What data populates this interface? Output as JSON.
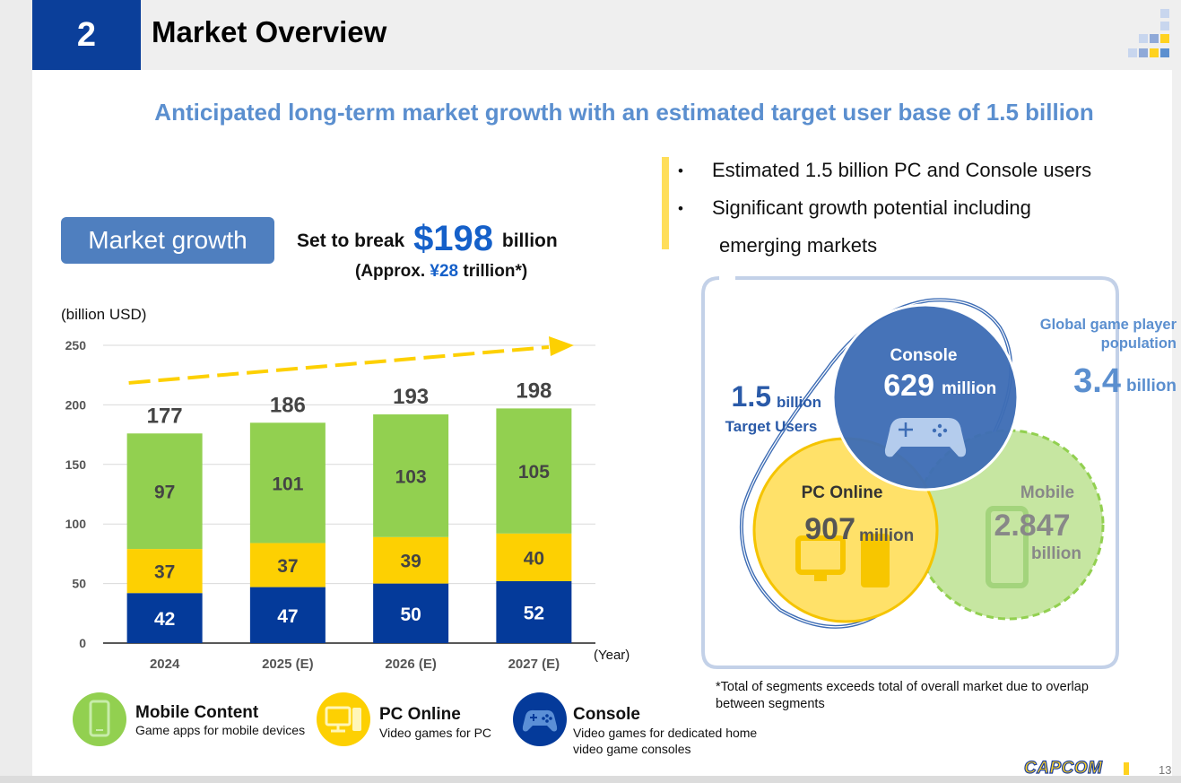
{
  "header": {
    "section_number": "2",
    "title": "Market Overview"
  },
  "subtitle": "Anticipated long-term market growth with an estimated target user base of 1.5 billion",
  "market_growth": {
    "badge": "Market growth",
    "break_prefix": "Set to break",
    "break_value": "$198",
    "break_suffix": "billion",
    "approx_prefix": "(Approx.",
    "approx_value": "¥28",
    "approx_suffix": "trillion",
    "approx_mark": "*)"
  },
  "bullets": [
    "Estimated 1.5 billion PC and Console users",
    "Significant growth potential including",
    "emerging markets"
  ],
  "bullet_symbol": "•",
  "chart_data": {
    "type": "bar",
    "stacked": true,
    "unit_label": "(billion  USD)",
    "x_axis_label": "(Year)",
    "categories": [
      "2024",
      "2025 (E)",
      "2026 (E)",
      "2027 (E)"
    ],
    "series": [
      {
        "name": "Console",
        "color": "#043a9a",
        "label_color": "#ffffff",
        "values": [
          42,
          47,
          50,
          52
        ]
      },
      {
        "name": "PC Online",
        "color": "#fdd002",
        "label_color": "#444444",
        "values": [
          37,
          37,
          39,
          40
        ]
      },
      {
        "name": "Mobile Content",
        "color": "#92d050",
        "label_color": "#444444",
        "values": [
          97,
          101,
          103,
          105
        ]
      }
    ],
    "totals": [
      177,
      186,
      193,
      198
    ],
    "ylim": [
      0,
      250
    ],
    "yticks": [
      0,
      50,
      100,
      150,
      200,
      250
    ],
    "trend_arrow_color": "#fdd002",
    "grid": true
  },
  "legend": [
    {
      "title": "Mobile Content",
      "desc": "Game apps for mobile devices",
      "color": "#92d050",
      "icon": "mobile-icon"
    },
    {
      "title": "PC Online",
      "desc": "Video games for PC",
      "color": "#fdd002",
      "icon": "pc-icon"
    },
    {
      "title": "Console",
      "desc": "Video games for dedicated home video game consoles",
      "color": "#043a9a",
      "icon": "gamepad-icon"
    }
  ],
  "venn": {
    "target_value": "1.5",
    "target_unit": "billion",
    "target_label": "Target Users",
    "global_label_line1": "Global game player",
    "global_label_line2": "population",
    "global_value": "3.4",
    "global_unit": "billion",
    "console_label": "Console",
    "console_value": "629",
    "console_unit": "million",
    "pc_label": "PC Online",
    "pc_value": "907",
    "pc_unit": "million",
    "mobile_label": "Mobile",
    "mobile_value": "2.847",
    "mobile_unit": "billion",
    "colors": {
      "console": "#3e6db5",
      "pc": "#ffe169",
      "mobile": "#c6e6a1",
      "label_blue": "#2a5aa8"
    }
  },
  "footnote": "*Total of segments exceeds total of overall market due to overlap between segments",
  "footer": {
    "logo": "CAPCOM",
    "page_number": "13"
  }
}
